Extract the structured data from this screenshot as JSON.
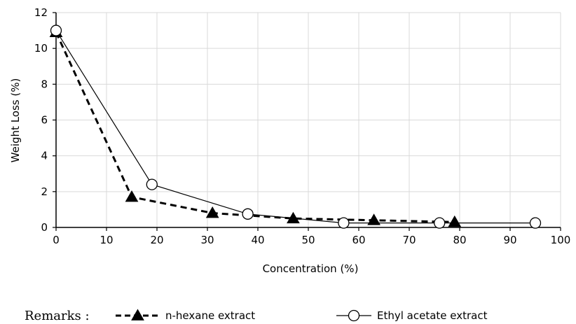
{
  "chart_data": {
    "type": "line",
    "xlabel": "Concentration (%)",
    "ylabel": "Weight Loss  (%)",
    "xlim": [
      0,
      100
    ],
    "ylim": [
      0,
      12
    ],
    "xticks": [
      0,
      10,
      20,
      30,
      40,
      50,
      60,
      70,
      80,
      90,
      100
    ],
    "yticks": [
      0,
      2,
      4,
      6,
      8,
      10,
      12
    ],
    "grid": true,
    "legend_placement": "bottom",
    "legend_prefix": "Remarks :",
    "series": [
      {
        "name": "n-hexane extract",
        "style": "dashed",
        "marker": "filled-triangle",
        "color": "#000000",
        "x": [
          0,
          15,
          31,
          47,
          63,
          79
        ],
        "y": [
          10.9,
          1.7,
          0.8,
          0.5,
          0.4,
          0.3
        ]
      },
      {
        "name": "Ethyl acetate extract",
        "style": "solid",
        "marker": "open-circle",
        "color": "#000000",
        "x": [
          0,
          19,
          38,
          57,
          76,
          95
        ],
        "y": [
          11.0,
          2.4,
          0.75,
          0.25,
          0.25,
          0.25
        ]
      }
    ]
  }
}
